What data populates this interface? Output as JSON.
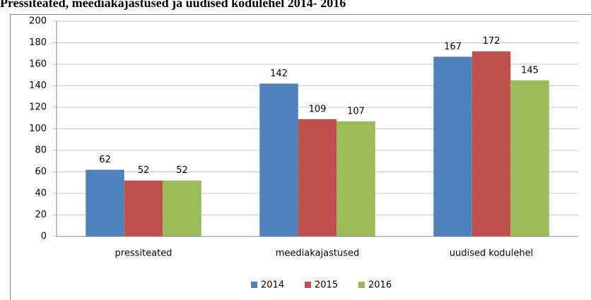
{
  "chart_data": {
    "type": "bar",
    "title": "Pressiteated, meediakajastused ja uudised kodulehel 2014- 2016",
    "categories": [
      "pressiteated",
      "meediakajastused",
      "uudised kodulehel"
    ],
    "series": [
      {
        "name": "2014",
        "color": "#4f81bd",
        "values": [
          62,
          142,
          167
        ]
      },
      {
        "name": "2015",
        "color": "#c0504d",
        "values": [
          52,
          109,
          172
        ]
      },
      {
        "name": "2016",
        "color": "#9bbb59",
        "values": [
          52,
          107,
          145
        ]
      }
    ],
    "ylim": [
      0,
      200
    ],
    "yticks": [
      0,
      20,
      40,
      60,
      80,
      100,
      120,
      140,
      160,
      180,
      200
    ],
    "grid": true,
    "legend": "bottom"
  }
}
